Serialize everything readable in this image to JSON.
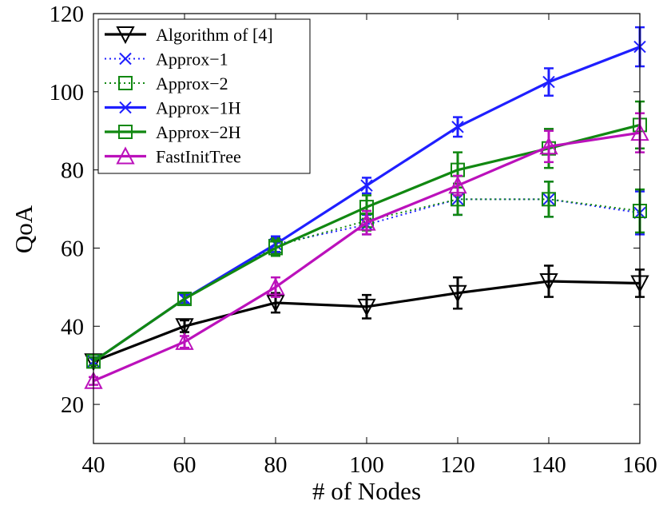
{
  "chart_data": {
    "type": "line",
    "xlabel": "# of Nodes",
    "ylabel": "QoA",
    "x": [
      40,
      60,
      80,
      100,
      120,
      140,
      160
    ],
    "xlim": [
      40,
      160
    ],
    "ylim": [
      10,
      120
    ],
    "xticks": [
      40,
      60,
      80,
      100,
      120,
      140,
      160
    ],
    "yticks": [
      20,
      40,
      60,
      80,
      100,
      120
    ],
    "grid": false,
    "legend_position": "top-left",
    "series": [
      {
        "name": "Algorithm of [4]",
        "color": "#000000",
        "line_style": "solid",
        "marker": "triangle-down",
        "values": [
          31,
          40,
          46,
          45,
          48.5,
          51.5,
          51
        ],
        "errors": [
          1.0,
          1.5,
          2.5,
          3.0,
          4.0,
          4.0,
          3.5
        ]
      },
      {
        "name": "Approx−1",
        "color": "#1f1fff",
        "line_style": "dotted",
        "marker": "x",
        "values": [
          31,
          47,
          61,
          66,
          72.5,
          72.5,
          69
        ],
        "errors": [
          1.0,
          1.5,
          2.0,
          2.5,
          4.0,
          4.5,
          5.5
        ]
      },
      {
        "name": "Approx−2",
        "color": "#118811",
        "line_style": "dotted",
        "marker": "square",
        "values": [
          31,
          47,
          60.5,
          67,
          72.5,
          72.5,
          69.5
        ],
        "errors": [
          1.0,
          1.5,
          2.0,
          2.5,
          4.0,
          4.5,
          5.5
        ]
      },
      {
        "name": "Approx−1H",
        "color": "#1f1fff",
        "line_style": "solid",
        "marker": "x",
        "values": [
          31,
          47,
          61,
          76,
          91,
          102.5,
          111.5
        ],
        "errors": [
          1.0,
          1.0,
          2.0,
          2.0,
          2.5,
          3.5,
          5.0
        ]
      },
      {
        "name": "Approx−2H",
        "color": "#118811",
        "line_style": "solid",
        "marker": "square",
        "values": [
          31,
          47,
          60,
          70.5,
          80,
          85.5,
          91.5
        ],
        "errors": [
          1.0,
          1.5,
          2.0,
          3.0,
          4.5,
          5.0,
          6.0
        ]
      },
      {
        "name": "FastInitTree",
        "color": "#bb11bb",
        "line_style": "solid",
        "marker": "triangle-up",
        "values": [
          26,
          36,
          50,
          66.5,
          76,
          86,
          89.5
        ],
        "errors": [
          1.0,
          1.5,
          2.5,
          3.0,
          2.5,
          4.0,
          5.0
        ]
      }
    ]
  }
}
